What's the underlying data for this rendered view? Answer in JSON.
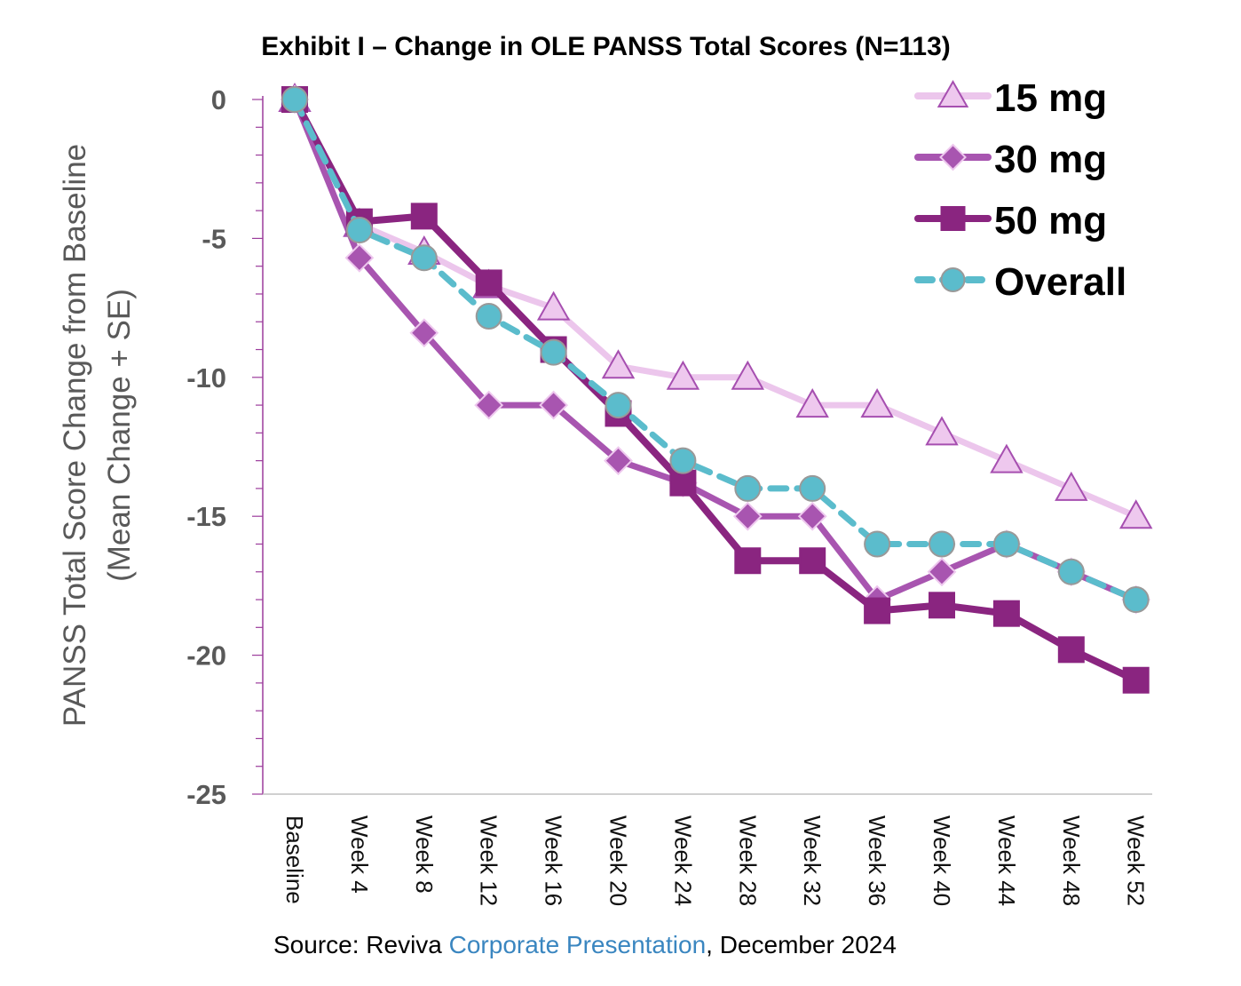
{
  "chart_data": {
    "type": "line",
    "title": "Exhibit I – Change in OLE PANSS Total Scores (N=113)",
    "ylabel_line1": "PANSS Total  Score Change from Baseline",
    "ylabel_line2": "(Mean Change + SE)",
    "xlabel": "",
    "ylim": [
      -25,
      0
    ],
    "yticks": [
      "0",
      "-5",
      "-10",
      "-15",
      "-20",
      "-25"
    ],
    "grid": false,
    "legend_position": "top-right",
    "categories": [
      "Baseline",
      "Week 4",
      "Week 8",
      "Week 12",
      "Week 16",
      "Week 20",
      "Week 24",
      "Week 28",
      "Week 32",
      "Week 36",
      "Week 40",
      "Week 44",
      "Week 48",
      "Week 52"
    ],
    "series": [
      {
        "name": "15 mg",
        "marker": "triangle",
        "line": "#ecc6ec",
        "marker_fill": "#eec8ee",
        "marker_stroke": "#a64fb0",
        "dash": false,
        "values": [
          0,
          -4.5,
          -5.5,
          -6.7,
          -7.5,
          -9.6,
          -10,
          -10,
          -11,
          -11,
          -12,
          -13,
          -14,
          -15
        ]
      },
      {
        "name": "30 mg",
        "marker": "diamond",
        "line": "#a855b0",
        "marker_fill": "#a855b0",
        "marker_stroke": "#eec8ee",
        "dash": false,
        "values": [
          0,
          -5.7,
          -8.4,
          -11,
          -11,
          -13,
          -13.8,
          -15,
          -15,
          -18,
          -17,
          -16,
          -17,
          -18
        ]
      },
      {
        "name": "50 mg",
        "marker": "square",
        "line": "#8a2580",
        "marker_fill": "#8a2580",
        "marker_stroke": "#8a2580",
        "dash": false,
        "values": [
          0,
          -4.4,
          -4.2,
          -6.6,
          -9,
          -11.3,
          -13.8,
          -16.6,
          -16.6,
          -18.4,
          -18.2,
          -18.5,
          -19.8,
          -20.9
        ]
      },
      {
        "name": "Overall",
        "marker": "circle",
        "line": "#5bbccc",
        "marker_fill": "#5bbccc",
        "marker_stroke": "#999999",
        "dash": true,
        "values": [
          0,
          -4.7,
          -5.7,
          -7.8,
          -9.1,
          -11,
          -13,
          -14,
          -14,
          -16,
          -16,
          -16,
          -17,
          -18
        ]
      }
    ],
    "axis_color": "#9c3c9c"
  },
  "source": {
    "prefix": "Source: Reviva ",
    "link": "Corporate Presentation",
    "suffix": ", December 2024"
  }
}
